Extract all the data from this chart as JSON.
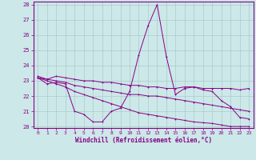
{
  "xlabel": "Windchill (Refroidissement éolien,°C)",
  "background_color": "#cce8e8",
  "grid_color": "#aacccc",
  "line_color": "#880088",
  "hours": [
    0,
    1,
    2,
    3,
    4,
    5,
    6,
    7,
    8,
    9,
    10,
    11,
    12,
    13,
    14,
    15,
    16,
    17,
    18,
    19,
    20,
    21,
    22,
    23
  ],
  "line_spiky": [
    23.2,
    22.8,
    22.9,
    22.8,
    21.0,
    20.8,
    20.3,
    20.3,
    21.0,
    21.2,
    22.3,
    24.7,
    26.6,
    28.0,
    24.6,
    22.1,
    22.5,
    22.6,
    22.4,
    22.3,
    21.7,
    21.3,
    20.6,
    20.5
  ],
  "line_upper_flat": [
    23.3,
    23.1,
    23.3,
    23.2,
    23.1,
    23.0,
    23.0,
    22.9,
    22.9,
    22.8,
    22.7,
    22.7,
    22.6,
    22.6,
    22.5,
    22.5,
    22.6,
    22.6,
    22.5,
    22.5,
    22.5,
    22.5,
    22.4,
    22.5
  ],
  "line_mid_decline": [
    23.2,
    23.1,
    23.0,
    22.9,
    22.7,
    22.6,
    22.5,
    22.4,
    22.3,
    22.2,
    22.1,
    22.1,
    22.0,
    22.0,
    21.9,
    21.8,
    21.7,
    21.6,
    21.5,
    21.4,
    21.3,
    21.2,
    21.1,
    21.0
  ],
  "line_lower_decline": [
    23.2,
    23.0,
    22.8,
    22.6,
    22.3,
    22.1,
    21.9,
    21.7,
    21.5,
    21.3,
    21.1,
    20.9,
    20.8,
    20.7,
    20.6,
    20.5,
    20.4,
    20.3,
    20.25,
    20.2,
    20.1,
    20.0,
    20.0,
    20.0
  ],
  "ylim": [
    20,
    28
  ],
  "yticks": [
    20,
    21,
    22,
    23,
    24,
    25,
    26,
    27,
    28
  ],
  "xlim": [
    -0.5,
    23.5
  ],
  "xticks": [
    0,
    1,
    2,
    3,
    4,
    5,
    6,
    7,
    8,
    9,
    10,
    11,
    12,
    13,
    14,
    15,
    16,
    17,
    18,
    19,
    20,
    21,
    22,
    23
  ]
}
